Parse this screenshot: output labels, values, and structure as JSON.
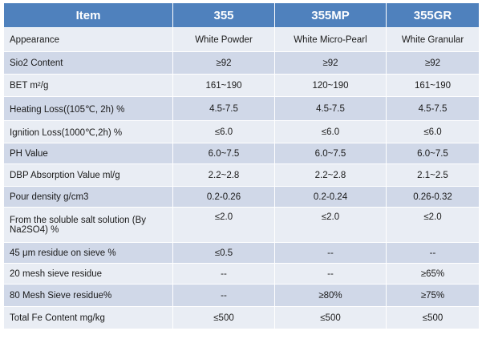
{
  "table": {
    "headers": [
      "Item",
      "355",
      "355MP",
      "355GR"
    ],
    "rows": [
      {
        "item": "Appearance",
        "v355": "White Powder",
        "v355mp": "White Micro-Pearl",
        "v355gr": "White Granular"
      },
      {
        "item": "Sio2 Content",
        "v355": "≥92",
        "v355mp": "≥92",
        "v355gr": "≥92"
      },
      {
        "item": "BET m²/g",
        "v355": "161~190",
        "v355mp": "120~190",
        "v355gr": "161~190"
      },
      {
        "item": "Heating Loss((105℃, 2h)  %",
        "v355": "4.5-7.5",
        "v355mp": "4.5-7.5",
        "v355gr": "4.5-7.5"
      },
      {
        "item": "Ignition Loss(1000℃,2h)  %",
        "v355": "≤6.0",
        "v355mp": "≤6.0",
        "v355gr": "≤6.0"
      },
      {
        "item": "PH Value",
        "v355": "6.0~7.5",
        "v355mp": "6.0~7.5",
        "v355gr": "6.0~7.5"
      },
      {
        "item": "DBP Absorption Value ml/g",
        "v355": "2.2~2.8",
        "v355mp": "2.2~2.8",
        "v355gr": "2.1~2.5"
      },
      {
        "item": "Pour density g/cm3",
        "v355": "0.2-0.26",
        "v355mp": "0.2-0.24",
        "v355gr": "0.26-0.32"
      },
      {
        "item": "From the soluble salt solution (By Na2SO4) %",
        "v355": "≤2.0",
        "v355mp": "≤2.0",
        "v355gr": "≤2.0"
      },
      {
        "item": "45 μm residue on sieve  %",
        "v355": "≤0.5",
        "v355mp": "--",
        "v355gr": "--"
      },
      {
        "item": "20 mesh sieve residue",
        "v355": "--",
        "v355mp": "--",
        "v355gr": "≥65%"
      },
      {
        "item": "80 Mesh Sieve residue%",
        "v355": "--",
        "v355mp": "≥80%",
        "v355gr": "≥75%"
      },
      {
        "item": "Total Fe Content mg/kg",
        "v355": "≤500",
        "v355mp": "≤500",
        "v355gr": "≤500"
      }
    ]
  },
  "colors": {
    "header_bg": "#4f81bd",
    "header_text": "#ffffff",
    "row_light": "#e9edf4",
    "row_dark": "#d0d8e8"
  }
}
